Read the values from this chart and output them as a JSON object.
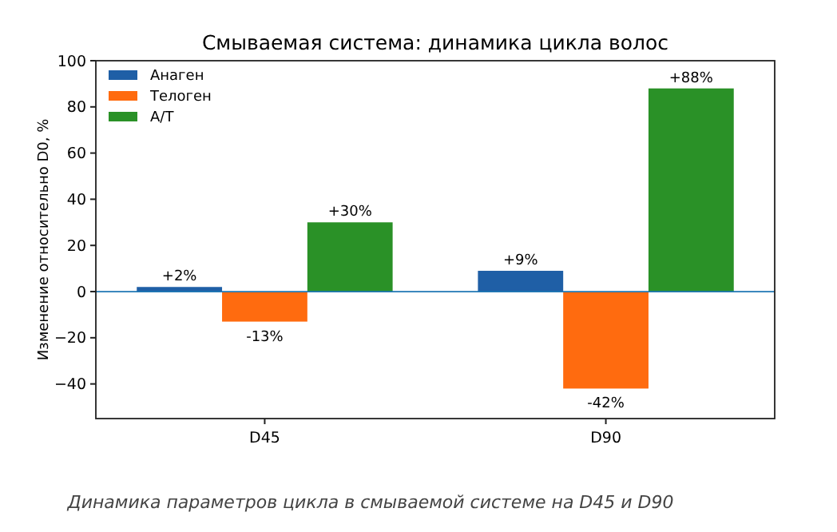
{
  "chart_data": {
    "type": "bar",
    "title": "Смываемая система: динамика цикла волос",
    "ylabel": "Изменение относительно D0, %",
    "categories": [
      "D45",
      "D90"
    ],
    "series": [
      {
        "name": "Анаген",
        "color": "#1f5fa6",
        "values": [
          2,
          9
        ],
        "value_labels": [
          "+2%",
          "+9%"
        ]
      },
      {
        "name": "Телоген",
        "color": "#ff6b0f",
        "values": [
          -13,
          -42
        ],
        "value_labels": [
          "-13%",
          "-42%"
        ]
      },
      {
        "name": "А/Т",
        "color": "#2a9127",
        "values": [
          30,
          88
        ],
        "value_labels": [
          "+30%",
          "+88%"
        ]
      }
    ],
    "ylim": [
      -55,
      100
    ],
    "yticks": [
      {
        "value": -40,
        "label": "−40"
      },
      {
        "value": -20,
        "label": "−20"
      },
      0,
      20,
      40,
      60,
      80,
      100
    ],
    "ref_lines": [
      {
        "axis": "y",
        "value": 0,
        "color": "#1f77b4"
      }
    ],
    "legend": "top left",
    "grid": false,
    "annotations": [
      "Динамика параметров цикла в смываемой системе на D45 и D90"
    ]
  }
}
